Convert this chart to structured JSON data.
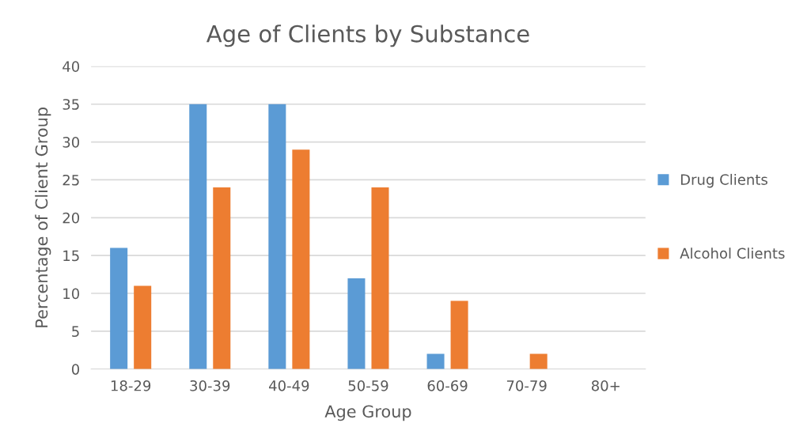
{
  "chart_data": {
    "type": "bar",
    "title": "Age of Clients by Substance",
    "xlabel": "Age Group",
    "ylabel": "Percentage of Client Group",
    "categories": [
      "18-29",
      "30-39",
      "40-49",
      "50-59",
      "60-69",
      "70-79",
      "80+"
    ],
    "series": [
      {
        "name": "Drug Clients",
        "color": "#5b9bd5",
        "values": [
          16,
          35,
          35,
          12,
          2,
          null,
          null
        ]
      },
      {
        "name": "Alcohol Clients",
        "color": "#ed7d31",
        "values": [
          11,
          24,
          29,
          24,
          9,
          2,
          null
        ]
      }
    ],
    "ylim": [
      0,
      40
    ],
    "yticks": [
      0,
      5,
      10,
      15,
      20,
      25,
      30,
      35,
      40
    ],
    "grid": "y",
    "legend": "right"
  }
}
